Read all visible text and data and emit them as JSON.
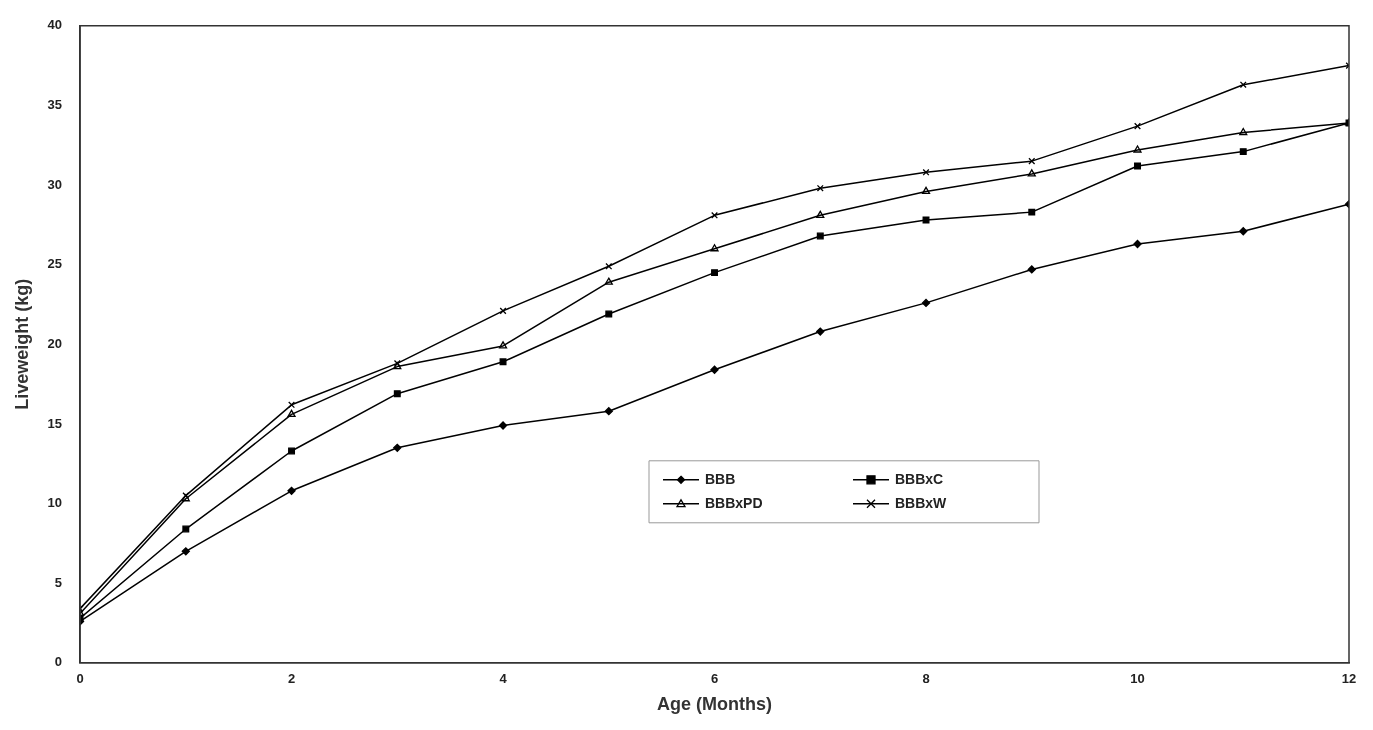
{
  "chart_data": {
    "type": "line",
    "xlabel": "Age (Months)",
    "ylabel": "Liveweight (kg)",
    "x": [
      0,
      1,
      2,
      3,
      4,
      5,
      6,
      7,
      8,
      9,
      10,
      11,
      12
    ],
    "xlim": [
      0,
      12
    ],
    "xticks": [
      0,
      2,
      4,
      6,
      8,
      10,
      12
    ],
    "ylim": [
      0,
      40
    ],
    "yticks": [
      0,
      5,
      10,
      15,
      20,
      25,
      30,
      35,
      40
    ],
    "grid": false,
    "legend": "bottom right",
    "line_style": "solid",
    "series": [
      {
        "name": "BBB",
        "color": "#000000",
        "marker": "diamond",
        "values": [
          2.6,
          7.0,
          10.8,
          13.5,
          14.9,
          15.8,
          18.4,
          20.8,
          22.6,
          24.7,
          26.3,
          27.1,
          28.8
        ]
      },
      {
        "name": "BBBxC",
        "color": "#000000",
        "marker": "square",
        "values": [
          2.8,
          8.4,
          13.3,
          16.9,
          18.9,
          21.9,
          24.5,
          26.8,
          27.8,
          28.3,
          31.2,
          32.1,
          33.9
        ]
      },
      {
        "name": "BBBxPD",
        "color": "#000000",
        "marker": "triangle",
        "values": [
          3.1,
          10.3,
          15.6,
          18.6,
          19.9,
          23.9,
          26.0,
          28.1,
          29.6,
          30.7,
          32.2,
          33.3,
          33.9
        ]
      },
      {
        "name": "BBBxW",
        "color": "#000000",
        "marker": "cross",
        "values": [
          3.4,
          10.5,
          16.2,
          18.8,
          22.1,
          24.9,
          28.1,
          29.8,
          30.8,
          31.5,
          33.7,
          36.3,
          37.5
        ]
      }
    ]
  }
}
